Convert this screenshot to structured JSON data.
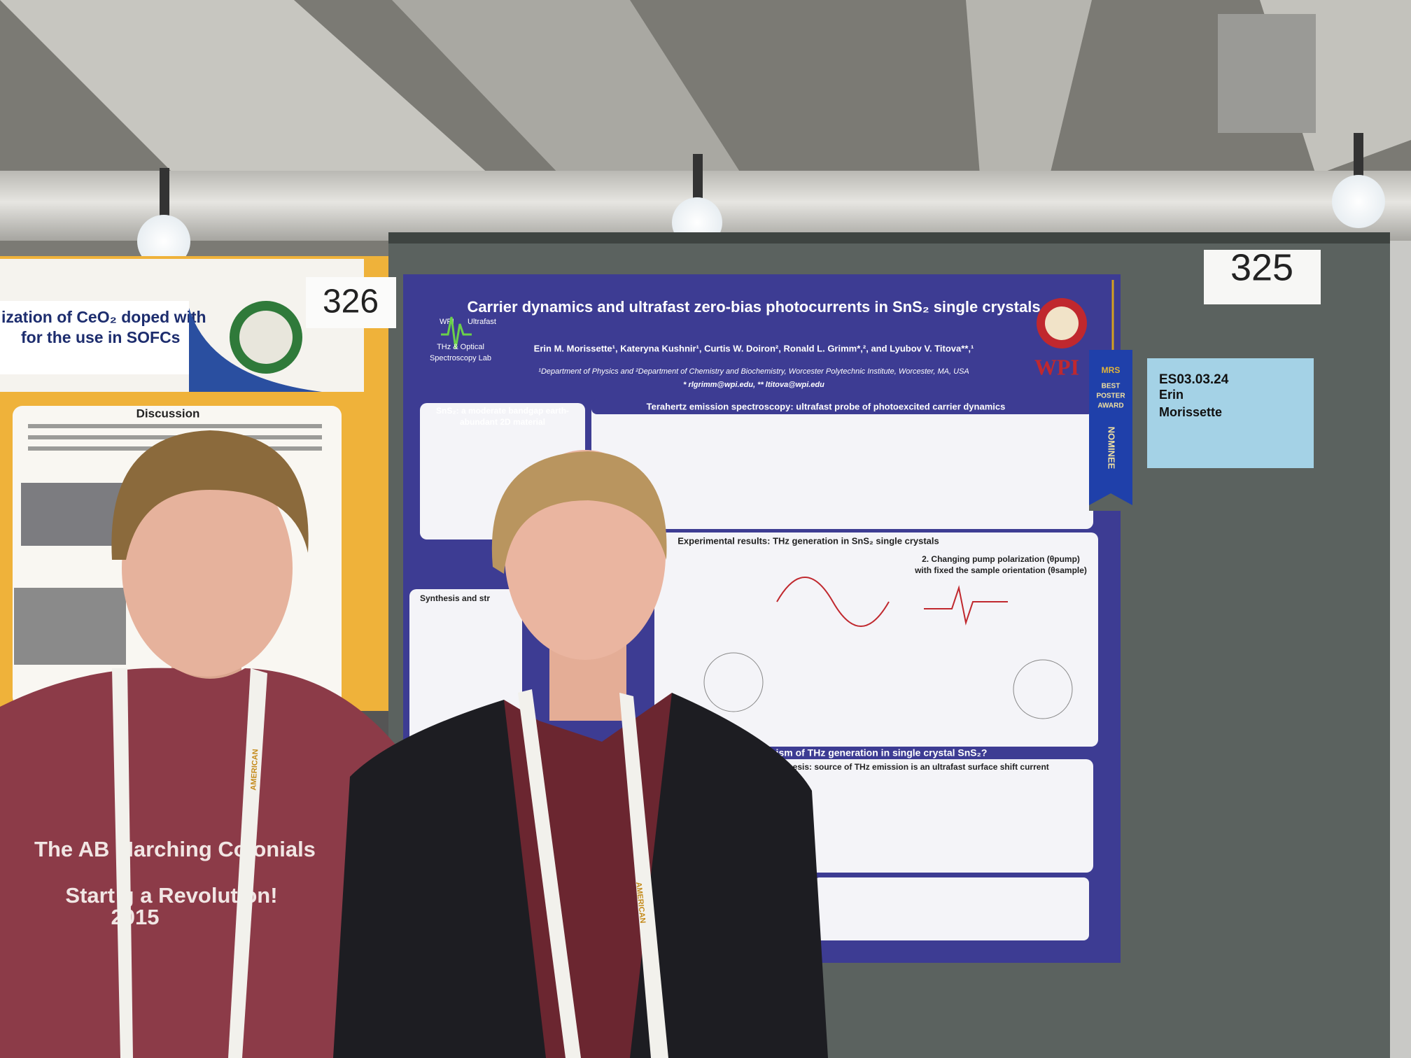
{
  "left_poster": {
    "number": "326",
    "title_lines": [
      "ization of CeO₂ doped with",
      "for the use in SOFCs"
    ],
    "section_heading": "Discussion"
  },
  "main_poster": {
    "number": "325",
    "logo": {
      "wpi": "WPI",
      "ultrafast": "Ultrafast",
      "lab_lines": [
        "THz & Optical",
        "Spectroscopy Lab"
      ]
    },
    "seal_text": "WPI",
    "title": "Carrier dynamics and ultrafast zero-bias photocurrents in SnS₂ single crystals",
    "authors": "Erin M. Morissette¹, Kateryna Kushnir¹, Curtis W. Doiron², Ronald L. Grimm*,², and Lyubov V. Titova**,¹",
    "affiliation": "¹Department of Physics and ²Department of Chemistry and Biochemistry, Worcester Polytechnic Institute, Worcester, MA, USA",
    "emails": "* rlgrimm@wpi.edu, ** ltitova@wpi.edu",
    "sections": [
      "SnS₂: a moderate bandgap earth-",
      "abundant 2D material",
      "Terahertz emission spectroscopy: ultrafast probe of photoexcited carrier dynamics",
      "Experimental results: THz generation in SnS₂ single crystals",
      "2. Changing pump polarization (θpump)",
      "with fixed the sample orientation (θsample)",
      "Synthesis and str",
      "nism of THz generation in single crystal SnS₂?",
      "ypothesis: source of THz emission is an ultrafast surface shift current"
    ]
  },
  "name_card": {
    "lines": [
      "ES03.03.24",
      "Erin",
      "Morissette"
    ]
  },
  "ribbon": {
    "top": "MRS",
    "lines": [
      "BEST",
      "POSTER",
      "AWARD"
    ],
    "vertical": "NOMINEE"
  },
  "shirt": {
    "lines": [
      "The AB Marching Co onials",
      "Start g a Revolution!",
      "2015"
    ]
  },
  "lanyard": {
    "text": "AMERICAN"
  }
}
